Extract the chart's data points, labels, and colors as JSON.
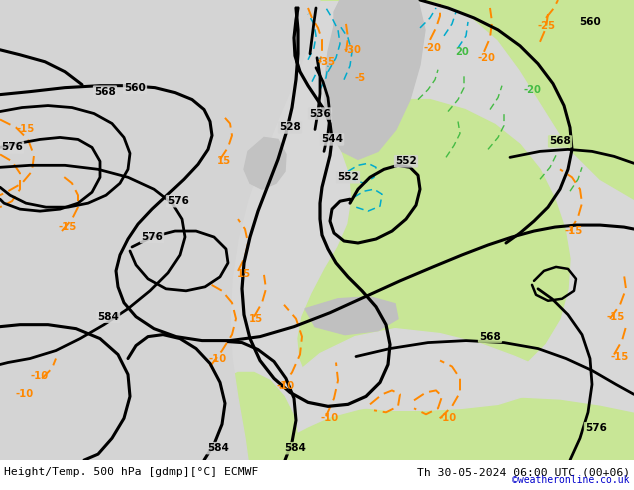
{
  "title_left": "Height/Temp. 500 hPa [gdmp][°C] ECMWF",
  "title_right": "Th 30-05-2024 06:00 UTC (00+06)",
  "credit": "©weatheronline.co.uk",
  "bg_gray": "#d0d0d0",
  "land_green": "#c8e696",
  "land_gray": "#b8b8b8",
  "sea_light": "#d8d8d8",
  "z500_color": "#000000",
  "temp_neg_color": "#ff8800",
  "temp_pos_color": "#33aa33",
  "rain_color": "#00aadd",
  "title_fontsize": 8.2,
  "credit_color": "#0000cc",
  "label_fs": 7.5,
  "white_bar": 30
}
